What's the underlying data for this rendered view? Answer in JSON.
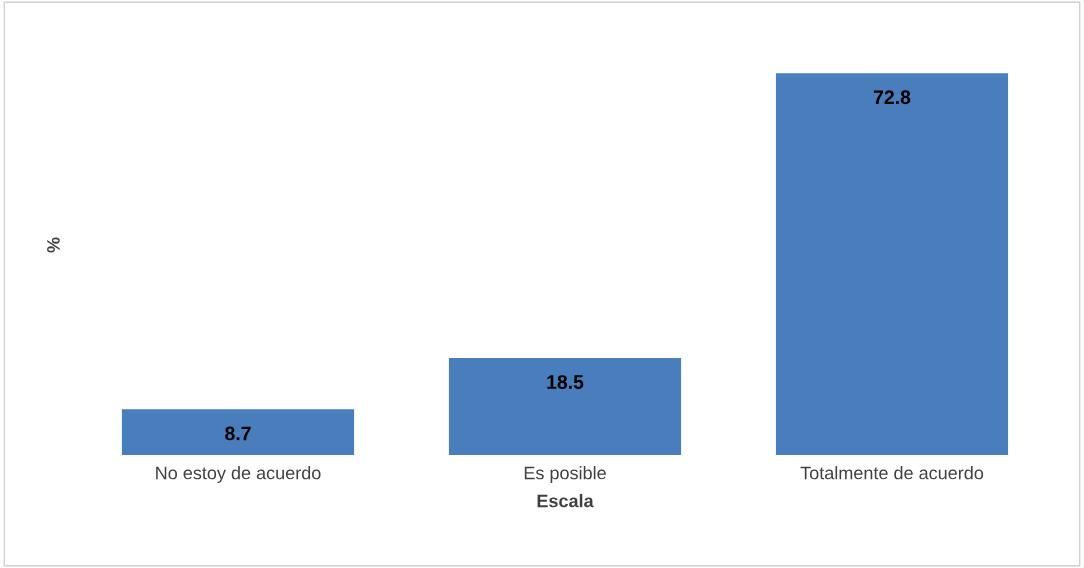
{
  "chart_data": {
    "type": "bar",
    "xlabel": "Escala",
    "ylabel": "%",
    "categories": [
      "No estoy de acuerdo",
      "Es posible",
      "Totalmente de acuerdo"
    ],
    "values": [
      8.7,
      18.5,
      72.8
    ],
    "color": "#4a7dbb",
    "data_labels": true,
    "tick_labels": "x"
  }
}
